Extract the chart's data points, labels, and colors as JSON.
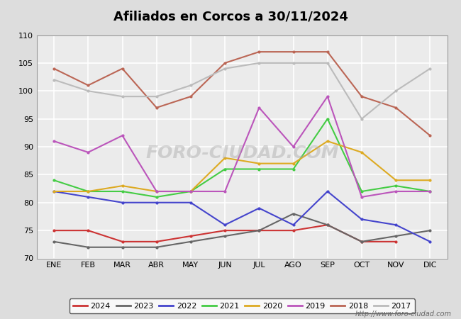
{
  "title": "Afiliados en Corcos a 30/11/2024",
  "ylim": [
    70,
    110
  ],
  "yticks": [
    70,
    75,
    80,
    85,
    90,
    95,
    100,
    105,
    110
  ],
  "months": [
    "ENE",
    "FEB",
    "MAR",
    "ABR",
    "MAY",
    "JUN",
    "JUL",
    "AGO",
    "SEP",
    "OCT",
    "NOV",
    "DIC"
  ],
  "series": {
    "2024": {
      "color": "#cc3333",
      "linewidth": 1.5,
      "data": [
        75,
        75,
        73,
        73,
        74,
        75,
        75,
        75,
        76,
        73,
        73,
        null
      ]
    },
    "2023": {
      "color": "#666666",
      "linewidth": 1.5,
      "data": [
        73,
        72,
        72,
        72,
        73,
        74,
        75,
        78,
        76,
        73,
        74,
        75
      ]
    },
    "2022": {
      "color": "#4444cc",
      "linewidth": 1.5,
      "data": [
        82,
        81,
        80,
        80,
        80,
        76,
        79,
        76,
        82,
        77,
        76,
        73
      ]
    },
    "2021": {
      "color": "#44cc44",
      "linewidth": 1.5,
      "data": [
        84,
        82,
        82,
        81,
        82,
        86,
        86,
        86,
        95,
        82,
        83,
        82
      ]
    },
    "2020": {
      "color": "#ddaa22",
      "linewidth": 1.5,
      "data": [
        82,
        82,
        83,
        82,
        82,
        88,
        87,
        87,
        91,
        89,
        84,
        84
      ]
    },
    "2019": {
      "color": "#bb55bb",
      "linewidth": 1.5,
      "data": [
        91,
        89,
        92,
        82,
        82,
        82,
        97,
        90,
        99,
        81,
        82,
        82
      ]
    },
    "2018": {
      "color": "#bb6655",
      "linewidth": 1.5,
      "data": [
        104,
        101,
        104,
        97,
        99,
        105,
        107,
        107,
        107,
        99,
        97,
        92
      ]
    },
    "2017": {
      "color": "#bbbbbb",
      "linewidth": 1.5,
      "data": [
        102,
        100,
        99,
        99,
        101,
        104,
        105,
        105,
        105,
        95,
        100,
        104
      ]
    }
  },
  "watermark": "FORO-CIUDAD.COM",
  "footer": "http://www.foro-ciudad.com",
  "plot_bg_color": "#ebebeb",
  "fig_bg_color": "#dddddd",
  "header_bg": "#5588bb",
  "grid_color": "#ffffff",
  "legend_order": [
    "2024",
    "2023",
    "2022",
    "2021",
    "2020",
    "2019",
    "2018",
    "2017"
  ]
}
